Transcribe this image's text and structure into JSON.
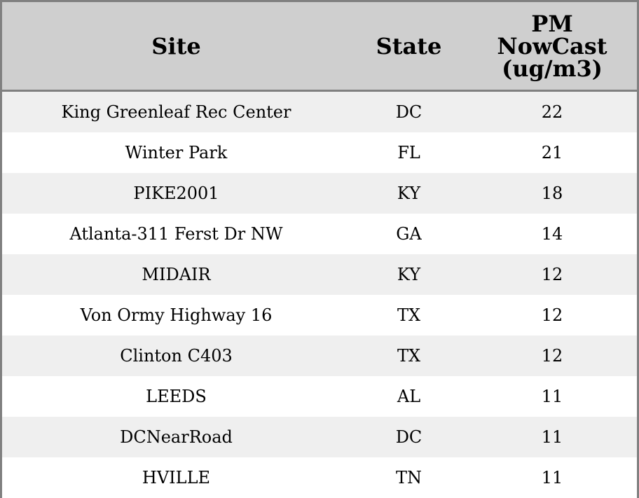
{
  "chart_data": {
    "type": "table",
    "columns": [
      "Site",
      "State",
      "PM NowCast (ug/m3)"
    ],
    "rows": [
      [
        "King Greenleaf Rec Center",
        "DC",
        "22"
      ],
      [
        "Winter Park",
        "FL",
        "21"
      ],
      [
        "PIKE2001",
        "KY",
        "18"
      ],
      [
        "Atlanta-311 Ferst Dr NW",
        "GA",
        "14"
      ],
      [
        "MIDAIR",
        "KY",
        "12"
      ],
      [
        "Von Ormy Highway 16",
        "TX",
        "12"
      ],
      [
        "Clinton C403",
        "TX",
        "12"
      ],
      [
        "LEEDS",
        "AL",
        "11"
      ],
      [
        "DCNearRoad",
        "DC",
        "11"
      ],
      [
        "HVILLE",
        "TN",
        "11"
      ]
    ],
    "colors": {
      "header_bg": "#cfcfcf",
      "row_alt_bg": "#efefef",
      "border": "#808080"
    }
  }
}
